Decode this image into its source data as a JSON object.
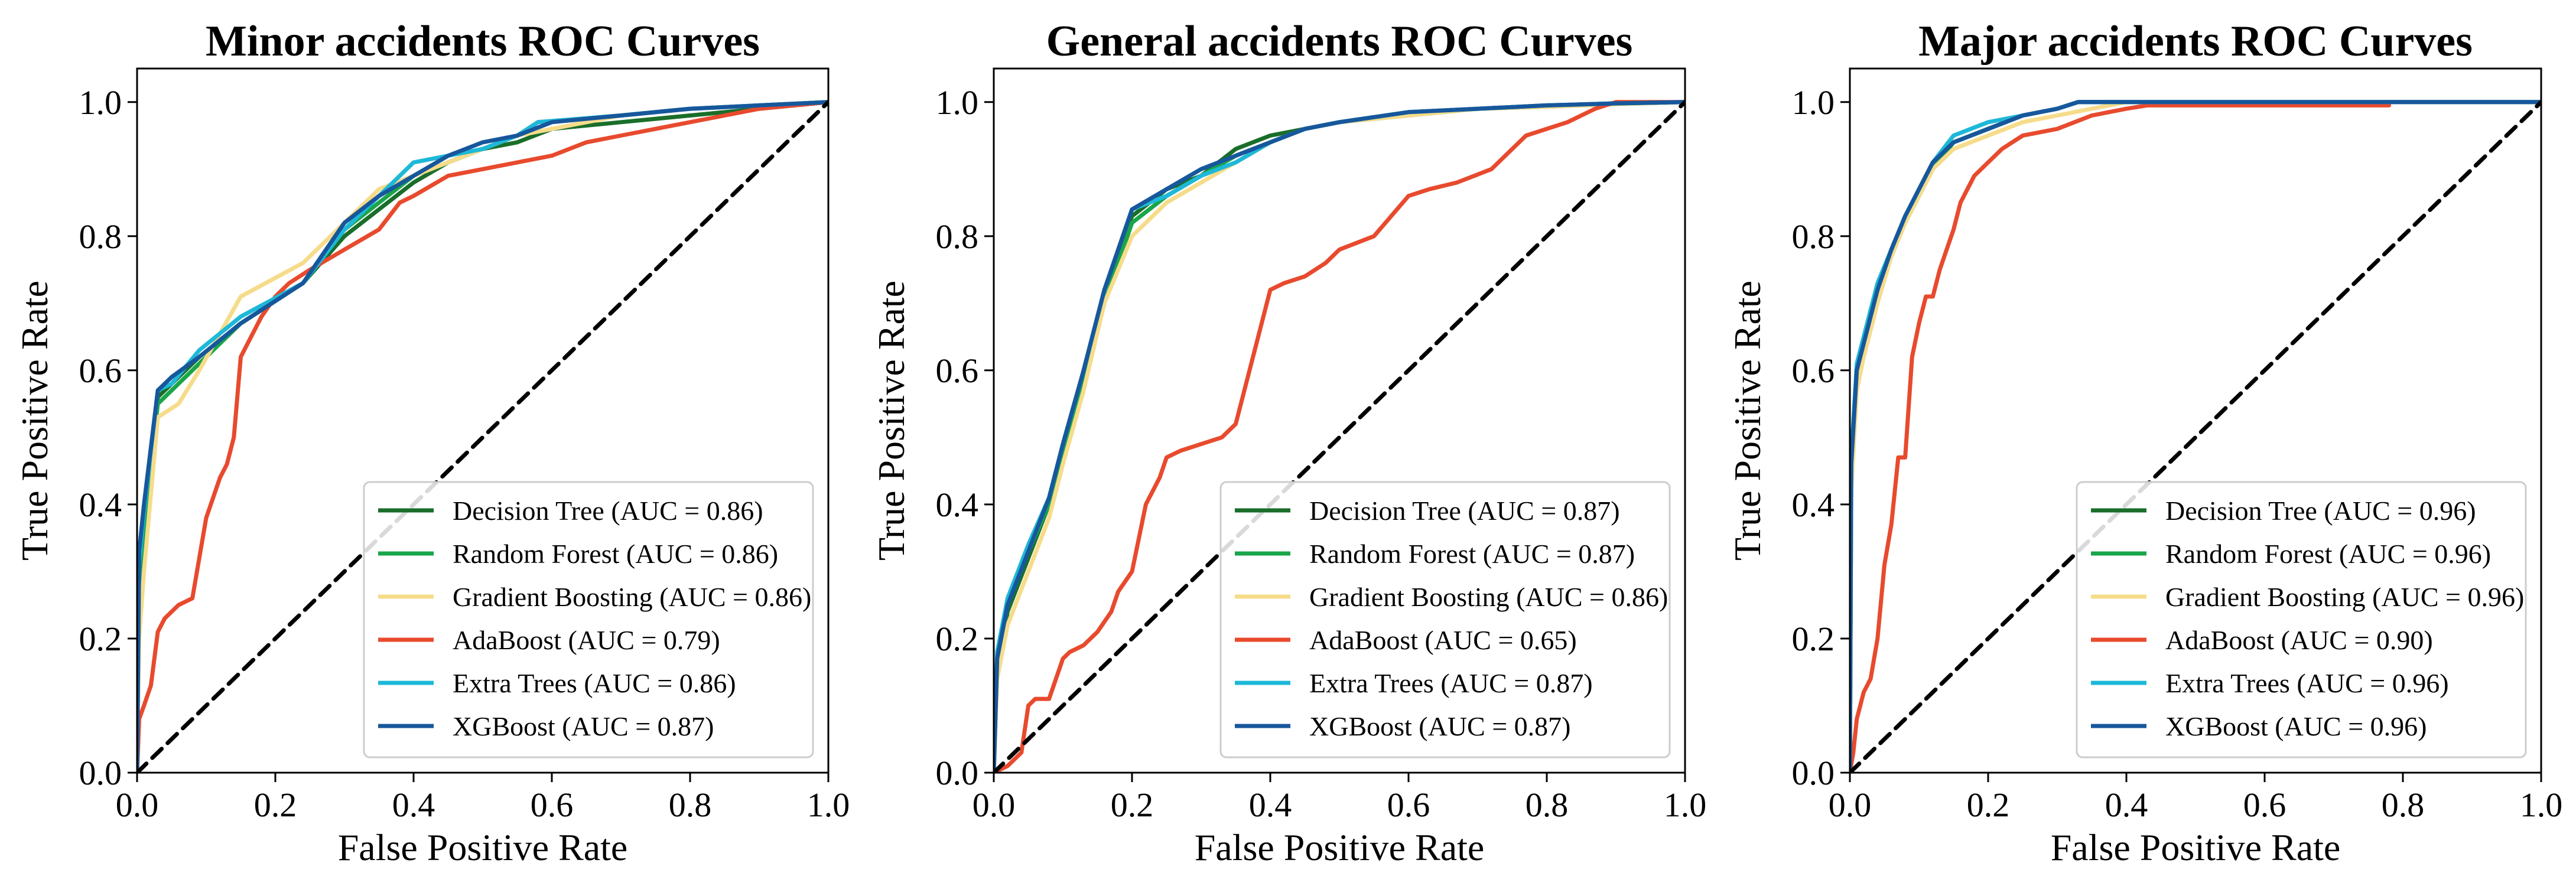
{
  "chart_data": [
    {
      "type": "line",
      "title": "Minor accidents ROC Curves",
      "xlabel": "False Positive Rate",
      "ylabel": "True Positive Rate",
      "xlim": [
        0,
        1
      ],
      "ylim": [
        0,
        1.05
      ],
      "xticks": [
        0,
        0.2,
        0.4,
        0.6,
        0.8,
        1.0
      ],
      "yticks": [
        0,
        0.2,
        0.4,
        0.6,
        0.8,
        1.0
      ],
      "tick_labels": [
        "0.0",
        "0.2",
        "0.4",
        "0.6",
        "0.8",
        "1.0"
      ],
      "grid": false,
      "legend_position": "lower-right",
      "series": [
        {
          "name": "Decision Tree (AUC = 0.86)",
          "color": "#1a6e2a",
          "x": [
            0,
            0.003,
            0.01,
            0.03,
            0.05,
            0.09,
            0.15,
            0.24,
            0.3,
            0.35,
            0.4,
            0.45,
            0.5,
            0.55,
            0.6,
            0.7,
            0.8,
            0.9,
            1.0
          ],
          "y": [
            0,
            0.3,
            0.38,
            0.56,
            0.58,
            0.62,
            0.67,
            0.73,
            0.8,
            0.84,
            0.88,
            0.91,
            0.93,
            0.94,
            0.96,
            0.97,
            0.98,
            0.99,
            1.0
          ]
        },
        {
          "name": "Random Forest (AUC = 0.86)",
          "color": "#1aa54a",
          "x": [
            0,
            0.003,
            0.01,
            0.03,
            0.05,
            0.09,
            0.15,
            0.24,
            0.3,
            0.35,
            0.4,
            0.45,
            0.5,
            0.55,
            0.58,
            0.7,
            0.8,
            0.9,
            1.0
          ],
          "y": [
            0,
            0.28,
            0.36,
            0.55,
            0.57,
            0.61,
            0.67,
            0.73,
            0.81,
            0.85,
            0.89,
            0.91,
            0.93,
            0.95,
            0.97,
            0.98,
            0.99,
            0.995,
            1.0
          ]
        },
        {
          "name": "Gradient Boosting (AUC = 0.86)",
          "color": "#f6dc8a",
          "x": [
            0,
            0.003,
            0.01,
            0.03,
            0.06,
            0.09,
            0.15,
            0.24,
            0.3,
            0.35,
            0.4,
            0.45,
            0.5,
            0.55,
            0.6,
            0.7,
            0.8,
            0.9,
            1.0
          ],
          "y": [
            0,
            0.2,
            0.3,
            0.53,
            0.55,
            0.6,
            0.71,
            0.76,
            0.82,
            0.87,
            0.89,
            0.91,
            0.93,
            0.95,
            0.96,
            0.98,
            0.99,
            0.995,
            1.0
          ]
        },
        {
          "name": "AdaBoost (AUC = 0.79)",
          "color": "#e84a2e",
          "x": [
            0,
            0.003,
            0.01,
            0.02,
            0.03,
            0.04,
            0.05,
            0.06,
            0.08,
            0.09,
            0.1,
            0.11,
            0.12,
            0.13,
            0.14,
            0.15,
            0.16,
            0.17,
            0.18,
            0.2,
            0.22,
            0.25,
            0.3,
            0.35,
            0.38,
            0.4,
            0.45,
            0.5,
            0.55,
            0.6,
            0.65,
            0.7,
            0.75,
            0.8,
            0.85,
            0.9,
            1.0
          ],
          "y": [
            0,
            0.08,
            0.1,
            0.13,
            0.21,
            0.23,
            0.24,
            0.25,
            0.26,
            0.32,
            0.38,
            0.41,
            0.44,
            0.46,
            0.5,
            0.62,
            0.64,
            0.66,
            0.68,
            0.71,
            0.73,
            0.75,
            0.78,
            0.81,
            0.85,
            0.86,
            0.89,
            0.9,
            0.91,
            0.92,
            0.94,
            0.95,
            0.96,
            0.97,
            0.98,
            0.99,
            1.0
          ]
        },
        {
          "name": "Extra Trees (AUC = 0.86)",
          "color": "#1eb8d8",
          "x": [
            0,
            0.003,
            0.01,
            0.03,
            0.05,
            0.09,
            0.15,
            0.24,
            0.3,
            0.35,
            0.4,
            0.45,
            0.5,
            0.55,
            0.58,
            0.7,
            0.8,
            0.9,
            1.0
          ],
          "y": [
            0,
            0.31,
            0.39,
            0.57,
            0.58,
            0.63,
            0.68,
            0.73,
            0.81,
            0.86,
            0.91,
            0.92,
            0.93,
            0.95,
            0.97,
            0.98,
            0.99,
            0.995,
            1.0
          ]
        },
        {
          "name": "XGBoost (AUC = 0.87)",
          "color": "#17579c",
          "x": [
            0,
            0.003,
            0.01,
            0.03,
            0.05,
            0.09,
            0.15,
            0.24,
            0.3,
            0.35,
            0.4,
            0.45,
            0.5,
            0.55,
            0.6,
            0.7,
            0.8,
            0.9,
            1.0
          ],
          "y": [
            0,
            0.33,
            0.4,
            0.57,
            0.59,
            0.62,
            0.67,
            0.73,
            0.82,
            0.86,
            0.89,
            0.92,
            0.94,
            0.95,
            0.97,
            0.98,
            0.99,
            0.995,
            1.0
          ]
        },
        {
          "name": "",
          "color": "#000000",
          "dashed": true,
          "x": [
            0,
            1
          ],
          "y": [
            0,
            1
          ]
        }
      ]
    },
    {
      "type": "line",
      "title": "General accidents ROC Curves",
      "xlabel": "False Positive Rate",
      "ylabel": "True Positive Rate",
      "xlim": [
        0,
        1
      ],
      "ylim": [
        0,
        1.05
      ],
      "xticks": [
        0,
        0.2,
        0.4,
        0.6,
        0.8,
        1.0
      ],
      "yticks": [
        0,
        0.2,
        0.4,
        0.6,
        0.8,
        1.0
      ],
      "tick_labels": [
        "0.0",
        "0.2",
        "0.4",
        "0.6",
        "0.8",
        "1.0"
      ],
      "grid": false,
      "legend_position": "lower-right",
      "series": [
        {
          "name": "Decision Tree (AUC = 0.87)",
          "color": "#1a6e2a",
          "x": [
            0,
            0.005,
            0.02,
            0.05,
            0.08,
            0.1,
            0.13,
            0.16,
            0.2,
            0.25,
            0.3,
            0.35,
            0.4,
            0.45,
            0.5,
            0.6,
            0.7,
            0.8,
            0.9,
            1.0
          ],
          "y": [
            0,
            0.15,
            0.24,
            0.32,
            0.4,
            0.48,
            0.6,
            0.72,
            0.83,
            0.87,
            0.89,
            0.93,
            0.95,
            0.96,
            0.97,
            0.985,
            0.99,
            0.995,
            0.998,
            1.0
          ]
        },
        {
          "name": "Random Forest (AUC = 0.87)",
          "color": "#1aa54a",
          "x": [
            0,
            0.005,
            0.02,
            0.05,
            0.08,
            0.1,
            0.13,
            0.16,
            0.2,
            0.25,
            0.3,
            0.35,
            0.4,
            0.45,
            0.5,
            0.6,
            0.7,
            0.8,
            0.9,
            1.0
          ],
          "y": [
            0,
            0.16,
            0.25,
            0.33,
            0.4,
            0.47,
            0.58,
            0.7,
            0.82,
            0.86,
            0.89,
            0.92,
            0.94,
            0.96,
            0.97,
            0.98,
            0.99,
            0.993,
            0.997,
            1.0
          ]
        },
        {
          "name": "Gradient Boosting (AUC = 0.86)",
          "color": "#f6dc8a",
          "x": [
            0,
            0.005,
            0.02,
            0.05,
            0.08,
            0.1,
            0.13,
            0.16,
            0.2,
            0.25,
            0.3,
            0.35,
            0.4,
            0.45,
            0.5,
            0.6,
            0.7,
            0.8,
            0.9,
            1.0
          ],
          "y": [
            0,
            0.14,
            0.22,
            0.3,
            0.38,
            0.46,
            0.57,
            0.7,
            0.8,
            0.85,
            0.88,
            0.91,
            0.94,
            0.96,
            0.97,
            0.98,
            0.99,
            0.993,
            0.997,
            1.0
          ]
        },
        {
          "name": "AdaBoost (AUC = 0.65)",
          "color": "#e84a2e",
          "x": [
            0,
            0.02,
            0.04,
            0.05,
            0.06,
            0.08,
            0.1,
            0.11,
            0.13,
            0.15,
            0.17,
            0.18,
            0.2,
            0.21,
            0.22,
            0.24,
            0.25,
            0.27,
            0.3,
            0.33,
            0.35,
            0.37,
            0.4,
            0.42,
            0.45,
            0.48,
            0.5,
            0.55,
            0.6,
            0.63,
            0.67,
            0.72,
            0.77,
            0.83,
            0.87,
            0.9,
            1.0
          ],
          "y": [
            0,
            0.01,
            0.03,
            0.1,
            0.11,
            0.11,
            0.17,
            0.18,
            0.19,
            0.21,
            0.24,
            0.27,
            0.3,
            0.35,
            0.4,
            0.44,
            0.47,
            0.48,
            0.49,
            0.5,
            0.52,
            0.6,
            0.72,
            0.73,
            0.74,
            0.76,
            0.78,
            0.8,
            0.86,
            0.87,
            0.88,
            0.9,
            0.95,
            0.97,
            0.99,
            1.0,
            1.0
          ]
        },
        {
          "name": "Extra Trees (AUC = 0.87)",
          "color": "#1eb8d8",
          "x": [
            0,
            0.005,
            0.02,
            0.05,
            0.08,
            0.1,
            0.13,
            0.16,
            0.2,
            0.25,
            0.3,
            0.35,
            0.4,
            0.45,
            0.5,
            0.6,
            0.7,
            0.8,
            0.9,
            1.0
          ],
          "y": [
            0,
            0.18,
            0.26,
            0.34,
            0.41,
            0.49,
            0.6,
            0.72,
            0.84,
            0.86,
            0.89,
            0.91,
            0.94,
            0.96,
            0.97,
            0.985,
            0.99,
            0.995,
            0.998,
            1.0
          ]
        },
        {
          "name": "XGBoost (AUC = 0.87)",
          "color": "#17579c",
          "x": [
            0,
            0.005,
            0.02,
            0.05,
            0.08,
            0.1,
            0.13,
            0.16,
            0.2,
            0.25,
            0.3,
            0.35,
            0.4,
            0.45,
            0.5,
            0.6,
            0.7,
            0.8,
            0.9,
            1.0
          ],
          "y": [
            0,
            0.17,
            0.25,
            0.33,
            0.41,
            0.49,
            0.6,
            0.72,
            0.84,
            0.87,
            0.9,
            0.92,
            0.94,
            0.96,
            0.97,
            0.985,
            0.99,
            0.995,
            0.998,
            1.0
          ]
        },
        {
          "name": "",
          "color": "#000000",
          "dashed": true,
          "x": [
            0,
            1
          ],
          "y": [
            0,
            1
          ]
        }
      ]
    },
    {
      "type": "line",
      "title": "Major accidents ROC Curves",
      "xlabel": "False Positive Rate",
      "ylabel": "True Positive Rate",
      "xlim": [
        0,
        1
      ],
      "ylim": [
        0,
        1.05
      ],
      "xticks": [
        0,
        0.2,
        0.4,
        0.6,
        0.8,
        1.0
      ],
      "yticks": [
        0,
        0.2,
        0.4,
        0.6,
        0.8,
        1.0
      ],
      "tick_labels": [
        "0.0",
        "0.2",
        "0.4",
        "0.6",
        "0.8",
        "1.0"
      ],
      "grid": false,
      "legend_position": "lower-right",
      "series": [
        {
          "name": "Decision Tree (AUC = 0.96)",
          "color": "#1a6e2a",
          "x": [
            0,
            0.002,
            0.01,
            0.02,
            0.04,
            0.06,
            0.08,
            0.1,
            0.12,
            0.15,
            0.2,
            0.25,
            0.3,
            0.33,
            0.4,
            0.5,
            0.7,
            1.0
          ],
          "y": [
            0,
            0.46,
            0.6,
            0.64,
            0.72,
            0.78,
            0.83,
            0.87,
            0.91,
            0.94,
            0.96,
            0.98,
            0.99,
            1.0,
            1.0,
            1.0,
            1.0,
            1.0
          ]
        },
        {
          "name": "Random Forest (AUC = 0.96)",
          "color": "#1aa54a",
          "x": [
            0,
            0.002,
            0.01,
            0.02,
            0.04,
            0.06,
            0.08,
            0.1,
            0.12,
            0.15,
            0.2,
            0.25,
            0.3,
            0.33,
            0.4,
            0.5,
            0.7,
            1.0
          ],
          "y": [
            0,
            0.45,
            0.59,
            0.63,
            0.71,
            0.77,
            0.82,
            0.86,
            0.9,
            0.94,
            0.96,
            0.98,
            0.99,
            1.0,
            1.0,
            1.0,
            1.0,
            1.0
          ]
        },
        {
          "name": "Gradient Boosting (AUC = 0.96)",
          "color": "#f6dc8a",
          "x": [
            0,
            0.002,
            0.01,
            0.02,
            0.04,
            0.06,
            0.08,
            0.1,
            0.12,
            0.15,
            0.2,
            0.25,
            0.3,
            0.35,
            0.4,
            0.5,
            0.7,
            1.0
          ],
          "y": [
            0,
            0.42,
            0.57,
            0.62,
            0.7,
            0.77,
            0.82,
            0.86,
            0.9,
            0.93,
            0.95,
            0.97,
            0.98,
            0.99,
            1.0,
            1.0,
            1.0,
            1.0
          ]
        },
        {
          "name": "AdaBoost (AUC = 0.90)",
          "color": "#e84a2e",
          "x": [
            0,
            0.005,
            0.01,
            0.02,
            0.03,
            0.04,
            0.05,
            0.06,
            0.07,
            0.08,
            0.09,
            0.1,
            0.11,
            0.12,
            0.13,
            0.14,
            0.15,
            0.16,
            0.18,
            0.2,
            0.22,
            0.25,
            0.3,
            0.35,
            0.4,
            0.43,
            0.5,
            0.6,
            0.78
          ],
          "y": [
            0,
            0.03,
            0.08,
            0.12,
            0.14,
            0.2,
            0.31,
            0.37,
            0.47,
            0.47,
            0.62,
            0.67,
            0.71,
            0.71,
            0.75,
            0.78,
            0.81,
            0.85,
            0.89,
            0.91,
            0.93,
            0.95,
            0.96,
            0.98,
            0.99,
            0.995,
            0.995,
            0.995,
            0.995
          ]
        },
        {
          "name": "Extra Trees (AUC = 0.96)",
          "color": "#1eb8d8",
          "x": [
            0,
            0.002,
            0.01,
            0.02,
            0.04,
            0.06,
            0.08,
            0.1,
            0.12,
            0.15,
            0.2,
            0.25,
            0.3,
            0.33,
            0.4,
            0.5,
            0.7,
            1.0
          ],
          "y": [
            0,
            0.47,
            0.61,
            0.65,
            0.73,
            0.78,
            0.83,
            0.87,
            0.91,
            0.95,
            0.97,
            0.98,
            0.99,
            1.0,
            1.0,
            1.0,
            1.0,
            1.0
          ]
        },
        {
          "name": "XGBoost (AUC = 0.96)",
          "color": "#17579c",
          "x": [
            0,
            0.002,
            0.01,
            0.02,
            0.04,
            0.06,
            0.08,
            0.1,
            0.12,
            0.15,
            0.2,
            0.25,
            0.3,
            0.33,
            0.4,
            0.5,
            0.7,
            1.0
          ],
          "y": [
            0,
            0.46,
            0.6,
            0.64,
            0.72,
            0.78,
            0.83,
            0.87,
            0.91,
            0.94,
            0.96,
            0.98,
            0.99,
            1.0,
            1.0,
            1.0,
            1.0,
            1.0
          ]
        },
        {
          "name": "",
          "color": "#000000",
          "dashed": true,
          "x": [
            0,
            1
          ],
          "y": [
            0,
            1
          ]
        }
      ]
    }
  ]
}
